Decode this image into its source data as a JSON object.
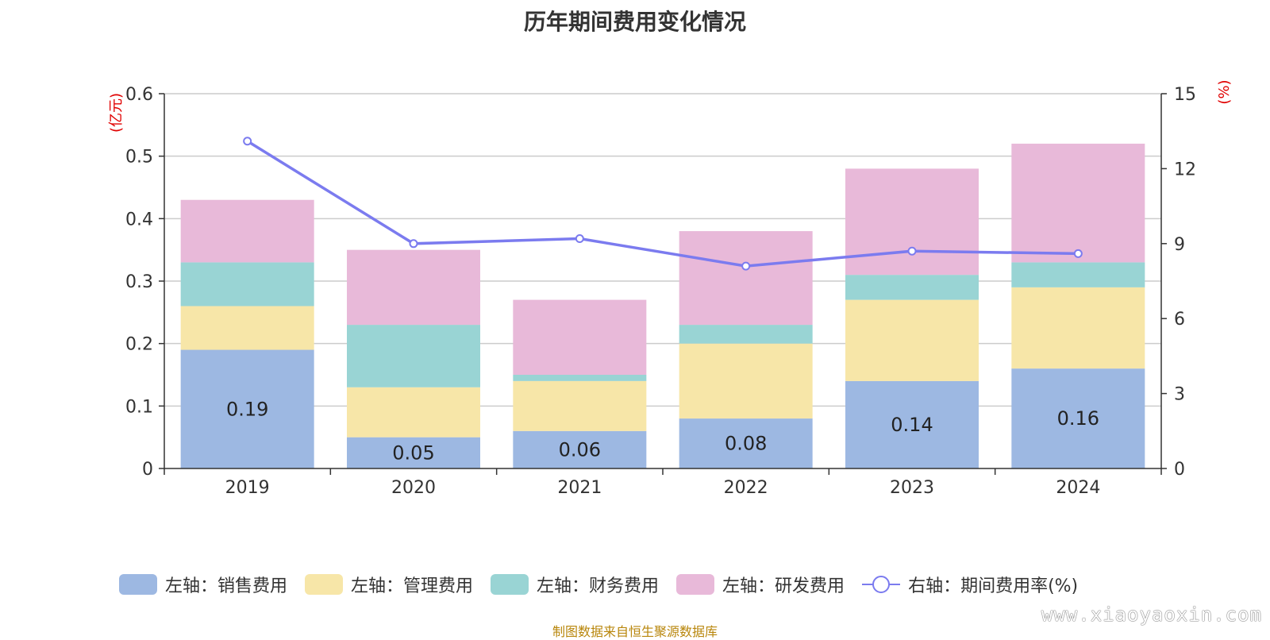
{
  "title": "历年期间费用变化情况",
  "source": "制图数据来自恒生聚源数据库",
  "watermark": "www.xiaoyaoxin.com",
  "chart_data": {
    "type": "bar",
    "stacked": true,
    "categories": [
      "2019",
      "2020",
      "2021",
      "2022",
      "2023",
      "2024"
    ],
    "left_axis": {
      "unit_label": "(亿元)",
      "range": [
        0,
        0.6
      ],
      "ticks": [
        "0",
        "0.1",
        "0.2",
        "0.3",
        "0.4",
        "0.5",
        "0.6"
      ]
    },
    "right_axis": {
      "unit_label": "(%)",
      "range": [
        0,
        15
      ],
      "ticks": [
        "0",
        "3",
        "6",
        "9",
        "12",
        "15"
      ]
    },
    "grid": true,
    "legend_position": "bottom",
    "series": [
      {
        "name": "左轴：销售费用",
        "type": "bar",
        "axis": "left",
        "color": "#9db8e2",
        "values": [
          0.19,
          0.05,
          0.06,
          0.08,
          0.14,
          0.16
        ],
        "labels": [
          "0.19",
          "0.05",
          "0.06",
          "0.08",
          "0.14",
          "0.16"
        ]
      },
      {
        "name": "左轴：管理费用",
        "type": "bar",
        "axis": "left",
        "color": "#f7e6a8",
        "values": [
          0.07,
          0.08,
          0.08,
          0.12,
          0.13,
          0.13
        ]
      },
      {
        "name": "左轴：财务费用",
        "type": "bar",
        "axis": "left",
        "color": "#99d4d4",
        "values": [
          0.07,
          0.1,
          0.01,
          0.03,
          0.04,
          0.04
        ]
      },
      {
        "name": "左轴：研发费用",
        "type": "bar",
        "axis": "left",
        "color": "#e8b9d9",
        "values": [
          0.1,
          0.12,
          0.12,
          0.15,
          0.17,
          0.19
        ]
      },
      {
        "name": "右轴：期间费用率(%)",
        "type": "line",
        "axis": "right",
        "color": "#7b7bef",
        "values": [
          13.1,
          9.0,
          9.2,
          8.1,
          8.7,
          8.6
        ]
      }
    ]
  }
}
